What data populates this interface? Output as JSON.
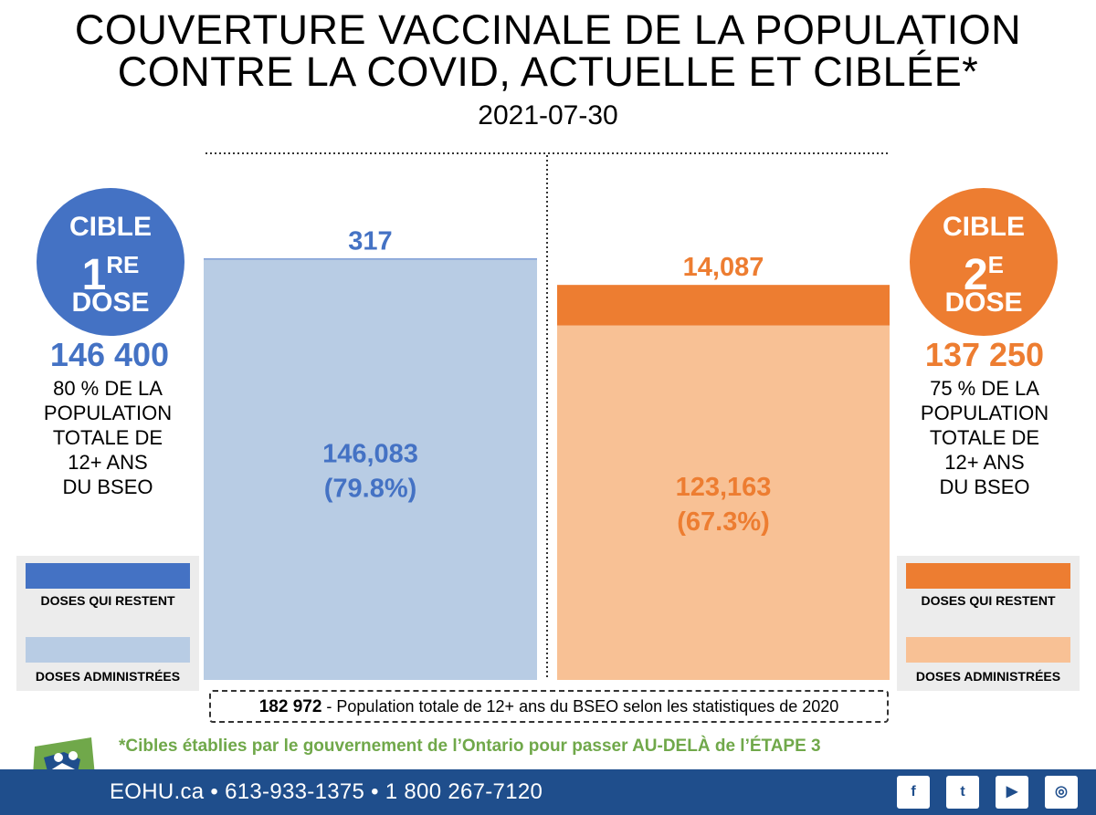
{
  "title_line1": "COUVERTURE VACCINALE DE LA POPULATION",
  "title_line2": "CONTRE LA COVID, ACTUELLE ET CIBLÉE*",
  "date": "2021-07-30",
  "colors": {
    "blue_dark": "#4472c4",
    "blue_light": "#b8cce4",
    "orange_dark": "#ed7d31",
    "orange_light": "#f8c195",
    "green_note": "#70a84a",
    "footer_bg": "#1f4e8c"
  },
  "targets": {
    "first": {
      "c_top": "CIBLE",
      "c_num": "1",
      "c_sup": "RE",
      "c_bot": "DOSE",
      "count": "146 400",
      "desc": [
        "80 % DE LA",
        "POPULATION",
        "TOTALE DE",
        "12+ ANS",
        "DU BSEO"
      ]
    },
    "second": {
      "c_top": "CIBLE",
      "c_num": "2",
      "c_sup": "E",
      "c_bot": "DOSE",
      "count": "137 250",
      "desc": [
        "75 % DE LA",
        "POPULATION",
        "TOTALE DE",
        "12+ ANS",
        "DU BSEO"
      ]
    }
  },
  "legend": {
    "remaining": "DOSES QUI RESTENT",
    "administered": "DOSES ADMINISTRÉES"
  },
  "chart_data": {
    "type": "bar",
    "stacked": true,
    "categories": [
      "1re dose",
      "2e dose"
    ],
    "series": [
      {
        "name": "DOSES ADMINISTRÉES",
        "values": [
          146083,
          123163
        ],
        "labels": [
          "146,083",
          "123,163"
        ],
        "pct_labels": [
          "(79.8%)",
          "(67.3%)"
        ]
      },
      {
        "name": "DOSES QUI RESTENT",
        "values": [
          317,
          14087
        ],
        "labels": [
          "317",
          "14,087"
        ]
      }
    ],
    "ylim": [
      0,
      182972
    ],
    "xlabel": "",
    "ylabel": ""
  },
  "population": {
    "number": "182 972",
    "text": " - Population totale de 12+ ans du BSEO selon les statistiques de 2020"
  },
  "footnote": "*Cibles établies par le gouvernement de l’Ontario pour passer AU-DELÀ de l’ÉTAPE 3",
  "footer": {
    "contact": "EOHU.ca  •  613-933-1375  •  1 800 267-7120",
    "social": [
      {
        "icon": "facebook-icon",
        "glyph": "f"
      },
      {
        "icon": "twitter-icon",
        "glyph": "t"
      },
      {
        "icon": "youtube-icon",
        "glyph": "▶"
      },
      {
        "icon": "instagram-icon",
        "glyph": "◎"
      }
    ]
  }
}
